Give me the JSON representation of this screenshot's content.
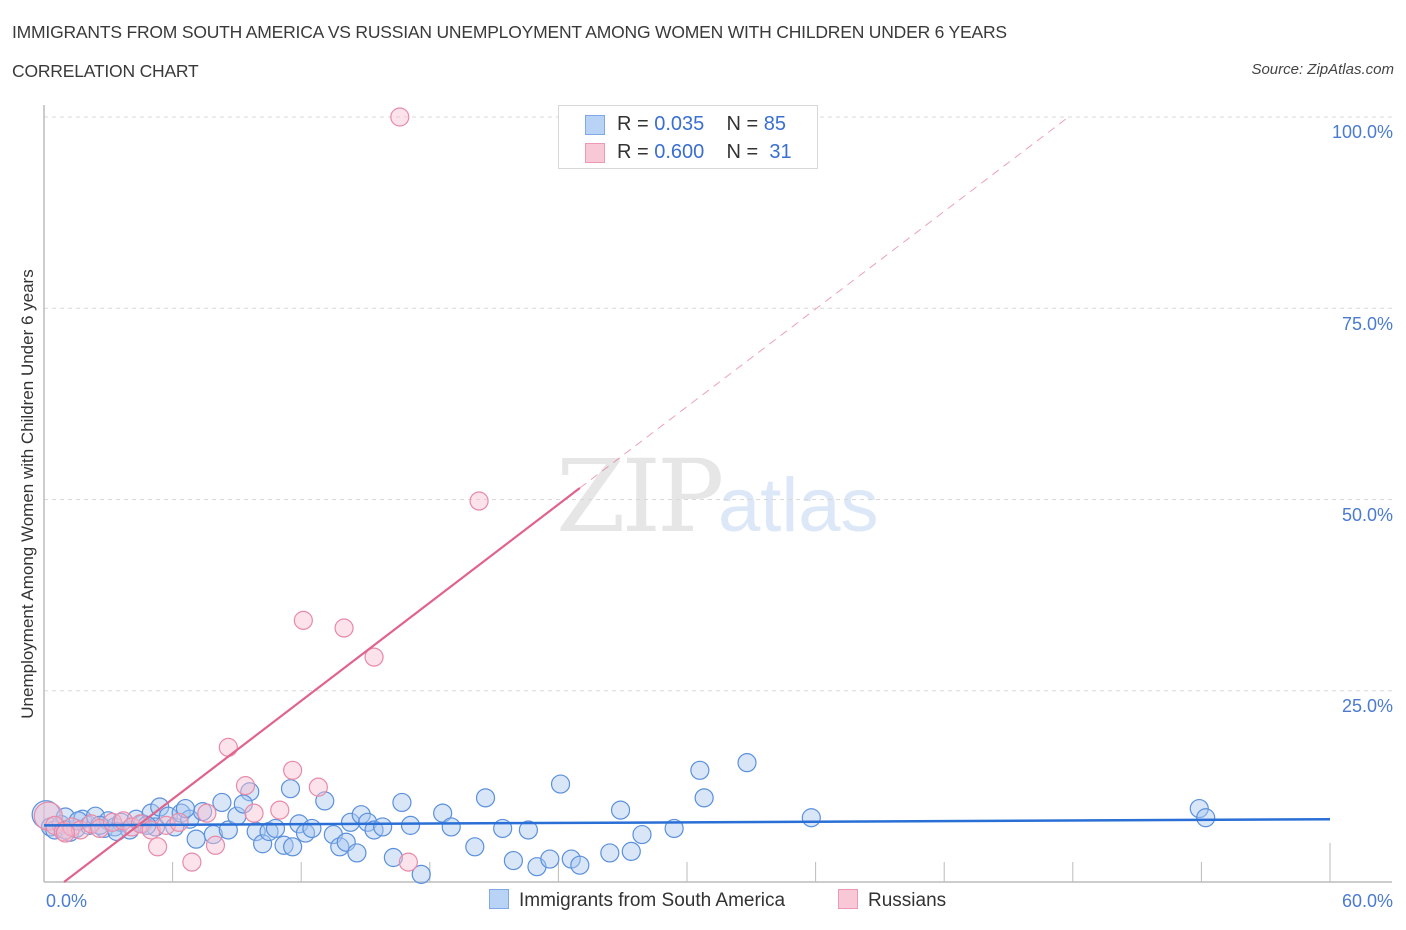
{
  "header": {
    "title": "IMMIGRANTS FROM SOUTH AMERICA VS RUSSIAN UNEMPLOYMENT AMONG WOMEN WITH CHILDREN UNDER 6 YEARS",
    "subtitle": "CORRELATION CHART",
    "source": "Source: ZipAtlas.com"
  },
  "watermark": {
    "zip": "ZIP",
    "atlas": "atlas"
  },
  "stats_box": {
    "rows": [
      {
        "r_label": "R = ",
        "r_value": "0.035",
        "n_label": "N = ",
        "n_value": "85",
        "color": "#b8d3f5",
        "border": "#7ea8e6"
      },
      {
        "r_label": "R = ",
        "r_value": "0.600",
        "n_label": "N = ",
        "n_value": " 31",
        "color": "#f9c8d7",
        "border": "#ec9ab4"
      }
    ]
  },
  "axes": {
    "y_label": "Unemployment Among Women with Children Under 6 years",
    "y_ticks": [
      "100.0%",
      "75.0%",
      "50.0%",
      "25.0%"
    ],
    "x_ticks": [
      "0.0%",
      "60.0%"
    ]
  },
  "legend": {
    "items": [
      {
        "label": "Immigrants from South America",
        "color": "#b8d3f5",
        "border": "#7ea8e6"
      },
      {
        "label": "Russians",
        "color": "#f9c8d7",
        "border": "#ec9ab4"
      }
    ]
  },
  "colors": {
    "blue_fill": "rgba(168,200,240,0.45)",
    "blue_stroke": "#5b90dc",
    "blue_line": "#2a6fd6",
    "pink_fill": "rgba(248,190,208,0.45)",
    "pink_stroke": "#e88aa8",
    "pink_line": "#e0638c",
    "grid": "#d8d8d8",
    "axis": "#bbbbbb",
    "tick_text": "#4a7bd0"
  },
  "chart_data": {
    "type": "scatter",
    "title": "IMMIGRANTS FROM SOUTH AMERICA VS RUSSIAN UNEMPLOYMENT AMONG WOMEN WITH CHILDREN UNDER 6 YEARS",
    "subtitle": "CORRELATION CHART",
    "xlabel": "",
    "ylabel": "Unemployment Among Women with Children Under 6 years",
    "xlim": [
      0,
      60
    ],
    "ylim": [
      0,
      100
    ],
    "x_tick_labels": [
      "0.0%",
      "60.0%"
    ],
    "y_tick_labels": [
      "25.0%",
      "50.0%",
      "75.0%",
      "100.0%"
    ],
    "grid": true,
    "legend_position": "bottom",
    "series": [
      {
        "name": "Immigrants from South America",
        "R": 0.035,
        "N": 85,
        "trend": {
          "x": [
            0,
            60
          ],
          "y": [
            7.4,
            8.2
          ]
        },
        "points": [
          [
            0.1,
            8.8
          ],
          [
            0.3,
            7.2
          ],
          [
            0.5,
            6.8
          ],
          [
            0.8,
            7.5
          ],
          [
            1.0,
            8.5
          ],
          [
            1.2,
            6.5
          ],
          [
            1.5,
            7.0
          ],
          [
            1.8,
            8.2
          ],
          [
            2.1,
            7.4
          ],
          [
            2.4,
            8.6
          ],
          [
            2.8,
            7.0
          ],
          [
            3.0,
            8.0
          ],
          [
            3.3,
            7.2
          ],
          [
            3.6,
            7.8
          ],
          [
            4.0,
            6.8
          ],
          [
            4.3,
            8.2
          ],
          [
            4.6,
            7.6
          ],
          [
            5.0,
            9.0
          ],
          [
            5.2,
            7.2
          ],
          [
            5.4,
            9.8
          ],
          [
            5.8,
            8.6
          ],
          [
            6.1,
            7.2
          ],
          [
            6.4,
            9.0
          ],
          [
            6.8,
            8.2
          ],
          [
            7.1,
            5.6
          ],
          [
            7.4,
            9.2
          ],
          [
            7.9,
            6.2
          ],
          [
            8.3,
            10.4
          ],
          [
            8.6,
            6.8
          ],
          [
            9.0,
            8.6
          ],
          [
            9.6,
            11.8
          ],
          [
            9.9,
            6.6
          ],
          [
            10.2,
            5.0
          ],
          [
            10.5,
            6.6
          ],
          [
            10.8,
            7.0
          ],
          [
            11.2,
            4.8
          ],
          [
            11.6,
            4.6
          ],
          [
            11.9,
            7.6
          ],
          [
            12.2,
            6.4
          ],
          [
            12.5,
            7.0
          ],
          [
            13.1,
            10.6
          ],
          [
            13.5,
            6.2
          ],
          [
            13.8,
            4.6
          ],
          [
            14.1,
            5.2
          ],
          [
            14.3,
            7.8
          ],
          [
            14.6,
            3.8
          ],
          [
            14.8,
            8.8
          ],
          [
            15.1,
            7.8
          ],
          [
            15.4,
            6.8
          ],
          [
            15.8,
            7.2
          ],
          [
            16.3,
            3.2
          ],
          [
            16.7,
            10.4
          ],
          [
            17.1,
            7.4
          ],
          [
            17.6,
            1.0
          ],
          [
            18.6,
            9.0
          ],
          [
            19.0,
            7.2
          ],
          [
            20.1,
            4.6
          ],
          [
            20.6,
            11.0
          ],
          [
            21.4,
            7.0
          ],
          [
            21.9,
            2.8
          ],
          [
            22.6,
            6.8
          ],
          [
            23.0,
            2.0
          ],
          [
            23.6,
            3.0
          ],
          [
            24.1,
            12.8
          ],
          [
            24.6,
            3.0
          ],
          [
            25.0,
            2.2
          ],
          [
            26.4,
            3.8
          ],
          [
            26.9,
            9.4
          ],
          [
            27.4,
            4.0
          ],
          [
            27.9,
            6.2
          ],
          [
            29.4,
            7.0
          ],
          [
            30.6,
            14.6
          ],
          [
            30.8,
            11.0
          ],
          [
            32.8,
            15.6
          ],
          [
            35.8,
            8.4
          ],
          [
            53.9,
            9.6
          ],
          [
            54.2,
            8.4
          ],
          [
            1.0,
            6.8
          ],
          [
            1.6,
            8.0
          ],
          [
            2.6,
            7.4
          ],
          [
            3.4,
            6.6
          ],
          [
            4.8,
            7.4
          ],
          [
            6.6,
            9.6
          ],
          [
            9.3,
            10.2
          ],
          [
            11.5,
            12.2
          ]
        ]
      },
      {
        "name": "Russians",
        "R": 0.6,
        "N": 31,
        "trend": {
          "x": [
            0,
            25
          ],
          "y": [
            -2.0,
            51.5
          ],
          "extended_dashed": {
            "x": [
              25,
              47.8
            ],
            "y": [
              51.5,
              100
            ]
          }
        },
        "points": [
          [
            0.2,
            8.6
          ],
          [
            0.5,
            7.4
          ],
          [
            0.9,
            6.6
          ],
          [
            1.3,
            7.2
          ],
          [
            1.7,
            6.8
          ],
          [
            2.2,
            7.6
          ],
          [
            2.6,
            7.0
          ],
          [
            3.2,
            7.8
          ],
          [
            3.7,
            8.0
          ],
          [
            4.1,
            7.2
          ],
          [
            4.5,
            7.6
          ],
          [
            5.0,
            6.8
          ],
          [
            5.3,
            4.6
          ],
          [
            5.7,
            7.4
          ],
          [
            6.3,
            7.8
          ],
          [
            6.9,
            2.6
          ],
          [
            7.6,
            9.0
          ],
          [
            8.0,
            4.8
          ],
          [
            8.6,
            17.6
          ],
          [
            9.4,
            12.6
          ],
          [
            9.8,
            9.0
          ],
          [
            11.0,
            9.4
          ],
          [
            11.6,
            14.6
          ],
          [
            12.1,
            34.2
          ],
          [
            12.8,
            12.4
          ],
          [
            14.0,
            33.2
          ],
          [
            15.4,
            29.4
          ],
          [
            16.6,
            100
          ],
          [
            17.0,
            2.6
          ],
          [
            20.3,
            49.8
          ],
          [
            1.0,
            6.4
          ]
        ]
      }
    ]
  }
}
